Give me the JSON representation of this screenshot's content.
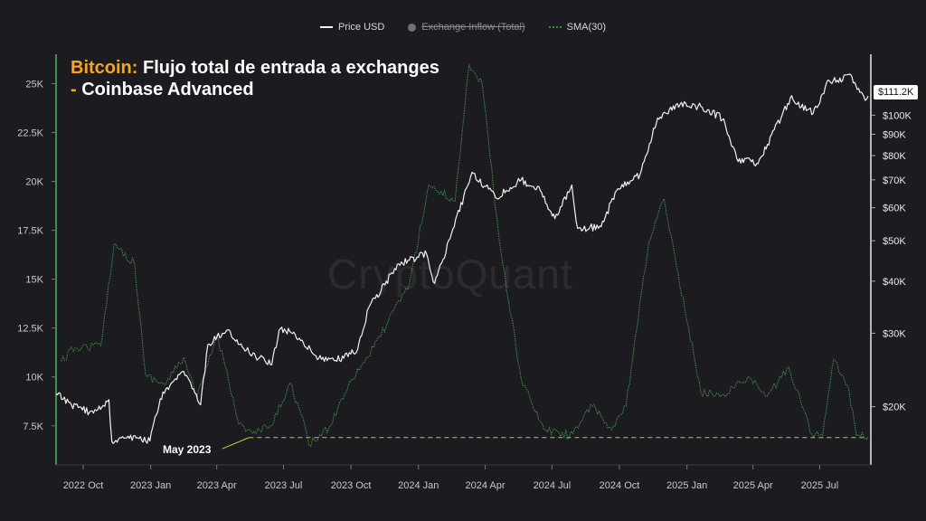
{
  "legend": {
    "price_label": "Price USD",
    "inflow_label": "Exchange Inflow (Total)",
    "sma_label": "SMA(30)"
  },
  "title": {
    "accent": "Bitcoin:",
    "main": " Flujo total de entrada a exchanges",
    "line2": "- Coinbase Advanced"
  },
  "watermark": "CryptoQuant",
  "price_tag": "$111.2K",
  "annotation": "May 2023",
  "colors": {
    "background": "#1c1c20",
    "price": "#f2f2f2",
    "sma": "#3f8f4c",
    "accent": "#f5a623",
    "threshold": "#c8c23c"
  },
  "chart_data": {
    "type": "line",
    "x_axis": {
      "range": [
        "2022-08-25",
        "2025-09-05"
      ],
      "tick_labels": [
        "2022 Oct",
        "2023 Jan",
        "2023 Apr",
        "2023 Jul",
        "2023 Oct",
        "2024 Jan",
        "2024 Apr",
        "2024 Jul",
        "2024 Oct",
        "2025 Jan",
        "2025 Apr",
        "2025 Jul"
      ],
      "tick_dates": [
        "2022-10-01",
        "2023-01-01",
        "2023-04-01",
        "2023-07-01",
        "2023-10-01",
        "2024-01-01",
        "2024-04-01",
        "2024-07-01",
        "2024-10-01",
        "2025-01-01",
        "2025-04-01",
        "2025-07-01"
      ]
    },
    "y_left": {
      "range": [
        5500,
        26500
      ],
      "ticks": [
        7500,
        10000,
        12500,
        15000,
        17500,
        20000,
        22500,
        25000
      ],
      "tick_labels": [
        "7.5K",
        "10K",
        "12.5K",
        "15K",
        "17.5K",
        "20K",
        "22.5K",
        "25K"
      ]
    },
    "y_right": {
      "scale": "log",
      "range": [
        14500,
        140000
      ],
      "ticks": [
        20000,
        30000,
        40000,
        50000,
        60000,
        70000,
        80000,
        90000,
        100000
      ],
      "tick_labels": [
        "$20K",
        "$30K",
        "$40K",
        "$50K",
        "$60K",
        "$70K",
        "$80K",
        "$90K",
        "$100K"
      ]
    },
    "series": [
      {
        "name": "Price USD",
        "axis": "right",
        "points": [
          [
            "2022-08-25",
            21500
          ],
          [
            "2022-09-15",
            20200
          ],
          [
            "2022-10-15",
            19300
          ],
          [
            "2022-11-05",
            20800
          ],
          [
            "2022-11-09",
            16500
          ],
          [
            "2022-12-01",
            17000
          ],
          [
            "2022-12-31",
            16550
          ],
          [
            "2023-01-14",
            20900
          ],
          [
            "2023-02-15",
            24300
          ],
          [
            "2023-03-10",
            20200
          ],
          [
            "2023-03-20",
            28200
          ],
          [
            "2023-04-14",
            30400
          ],
          [
            "2023-05-15",
            27000
          ],
          [
            "2023-06-15",
            25200
          ],
          [
            "2023-06-25",
            30500
          ],
          [
            "2023-07-15",
            30200
          ],
          [
            "2023-08-18",
            26100
          ],
          [
            "2023-09-10",
            25800
          ],
          [
            "2023-10-10",
            27400
          ],
          [
            "2023-10-25",
            34500
          ],
          [
            "2023-12-05",
            44000
          ],
          [
            "2024-01-12",
            46500
          ],
          [
            "2024-01-23",
            39500
          ],
          [
            "2024-02-15",
            52000
          ],
          [
            "2024-03-14",
            73000
          ],
          [
            "2024-04-15",
            63500
          ],
          [
            "2024-05-20",
            70000
          ],
          [
            "2024-06-15",
            66000
          ],
          [
            "2024-07-05",
            56500
          ],
          [
            "2024-07-28",
            68000
          ],
          [
            "2024-08-05",
            53500
          ],
          [
            "2024-09-06",
            54000
          ],
          [
            "2024-09-27",
            66000
          ],
          [
            "2024-10-29",
            72000
          ],
          [
            "2024-11-22",
            98500
          ],
          [
            "2024-12-17",
            106000
          ],
          [
            "2025-01-20",
            105000
          ],
          [
            "2025-02-20",
            98000
          ],
          [
            "2025-03-10",
            78600
          ],
          [
            "2025-04-08",
            76500
          ],
          [
            "2025-05-22",
            110000
          ],
          [
            "2025-06-22",
            101000
          ],
          [
            "2025-07-14",
            121000
          ],
          [
            "2025-08-14",
            123500
          ],
          [
            "2025-09-01",
            108500
          ],
          [
            "2025-09-05",
            111200
          ]
        ]
      },
      {
        "name": "SMA(30)",
        "axis": "left",
        "points": [
          [
            "2022-09-01",
            10800
          ],
          [
            "2022-09-20",
            11500
          ],
          [
            "2022-10-25",
            11600
          ],
          [
            "2022-11-12",
            16800
          ],
          [
            "2022-12-10",
            15800
          ],
          [
            "2022-12-25",
            10100
          ],
          [
            "2023-01-20",
            9600
          ],
          [
            "2023-02-15",
            11000
          ],
          [
            "2023-03-05",
            8900
          ],
          [
            "2023-04-01",
            12100
          ],
          [
            "2023-04-15",
            10300
          ],
          [
            "2023-05-01",
            7600
          ],
          [
            "2023-05-20",
            7100
          ],
          [
            "2023-06-15",
            7500
          ],
          [
            "2023-07-10",
            9700
          ],
          [
            "2023-07-25",
            8100
          ],
          [
            "2023-08-05",
            6500
          ],
          [
            "2023-09-01",
            7400
          ],
          [
            "2023-09-30",
            9800
          ],
          [
            "2023-11-01",
            11500
          ],
          [
            "2023-12-20",
            14800
          ],
          [
            "2024-01-15",
            19800
          ],
          [
            "2024-02-20",
            19000
          ],
          [
            "2024-03-10",
            26000
          ],
          [
            "2024-03-28",
            25000
          ],
          [
            "2024-04-20",
            17000
          ],
          [
            "2024-05-20",
            9900
          ],
          [
            "2024-06-20",
            7300
          ],
          [
            "2024-07-25",
            7000
          ],
          [
            "2024-08-25",
            8500
          ],
          [
            "2024-09-20",
            7300
          ],
          [
            "2024-10-10",
            8500
          ],
          [
            "2024-11-10",
            16900
          ],
          [
            "2024-12-01",
            19100
          ],
          [
            "2024-12-20",
            15300
          ],
          [
            "2025-01-20",
            9200
          ],
          [
            "2025-02-20",
            9100
          ],
          [
            "2025-03-25",
            10000
          ],
          [
            "2025-04-20",
            9000
          ],
          [
            "2025-05-20",
            10500
          ],
          [
            "2025-06-20",
            7100
          ],
          [
            "2025-07-05",
            7000
          ],
          [
            "2025-07-20",
            10900
          ],
          [
            "2025-08-10",
            9300
          ],
          [
            "2025-08-20",
            7000
          ],
          [
            "2025-09-05",
            6900
          ]
        ]
      }
    ],
    "threshold": {
      "value": 6900,
      "from": "2023-05-15",
      "to": "2025-09-05",
      "label": "May 2023"
    }
  }
}
